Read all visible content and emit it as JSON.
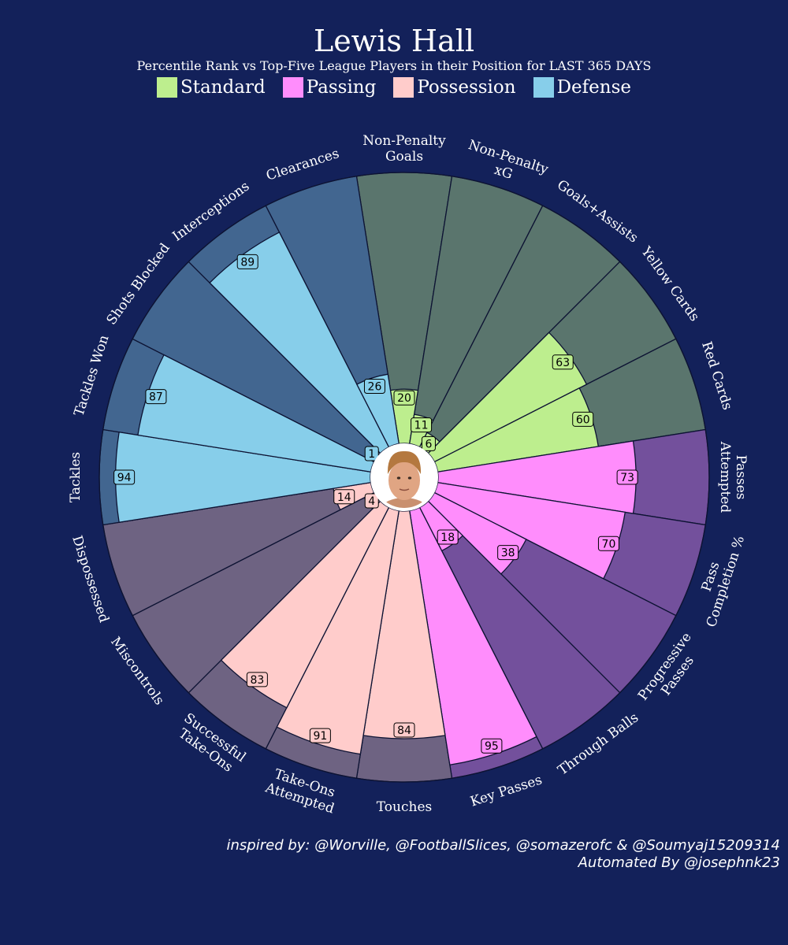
{
  "title": "Lewis Hall",
  "subtitle": "Percentile Rank vs Top-Five League Players in their Position for LAST 365 DAYS",
  "legend": [
    {
      "label": "Standard",
      "color": "#bdee8e"
    },
    {
      "label": "Passing",
      "color": "#ff8dfc"
    },
    {
      "label": "Possession",
      "color": "#ffcccb"
    },
    {
      "label": "Defense",
      "color": "#87ceea"
    }
  ],
  "credits": {
    "line1": "inspired by: @Worville, @FootballSlices, @somazerofc & @Soumyaj15209314",
    "line2": "Automated By @josephnk23"
  },
  "player_photo": "player-headshot",
  "chart_data": {
    "type": "radial-bar",
    "value_range": [
      0,
      100
    ],
    "category_colors": {
      "Standard": {
        "fill": "#bdee8e",
        "background": "#5a756d"
      },
      "Passing": {
        "fill": "#ff8dfc",
        "background": "#73509c"
      },
      "Possession": {
        "fill": "#ffcccb",
        "background": "#6e6382"
      },
      "Defense": {
        "fill": "#87ceea",
        "background": "#426690"
      }
    },
    "params": [
      {
        "label": "Non-Penalty\nGoals",
        "value": 20,
        "category": "Standard"
      },
      {
        "label": "Non-Penalty\nxG",
        "value": 11,
        "category": "Standard"
      },
      {
        "label": "Goals+Assists",
        "value": 6,
        "category": "Standard"
      },
      {
        "label": "Yellow Cards",
        "value": 63,
        "category": "Standard"
      },
      {
        "label": "Red Cards",
        "value": 60,
        "category": "Standard"
      },
      {
        "label": "Passes\nAttempted",
        "value": 73,
        "category": "Passing"
      },
      {
        "label": "Pass\nCompletion %",
        "value": 70,
        "category": "Passing"
      },
      {
        "label": "Progressive\nPasses",
        "value": 38,
        "category": "Passing"
      },
      {
        "label": "Through Balls",
        "value": 18,
        "category": "Passing"
      },
      {
        "label": "Key Passes",
        "value": 95,
        "category": "Passing"
      },
      {
        "label": "Touches",
        "value": 84,
        "category": "Possession"
      },
      {
        "label": "Take-Ons\nAttempted",
        "value": 91,
        "category": "Possession"
      },
      {
        "label": "Successful\nTake-Ons",
        "value": 83,
        "category": "Possession"
      },
      {
        "label": "Miscontrols",
        "value": 4,
        "category": "Possession"
      },
      {
        "label": "Dispossessed",
        "value": 14,
        "category": "Possession"
      },
      {
        "label": "Tackles",
        "value": 94,
        "category": "Defense"
      },
      {
        "label": "Tackles Won",
        "value": 87,
        "category": "Defense"
      },
      {
        "label": "Shots Blocked",
        "value": 1,
        "category": "Defense"
      },
      {
        "label": "Interceptions",
        "value": 89,
        "category": "Defense"
      },
      {
        "label": "Clearances",
        "value": 26,
        "category": "Defense"
      }
    ]
  }
}
